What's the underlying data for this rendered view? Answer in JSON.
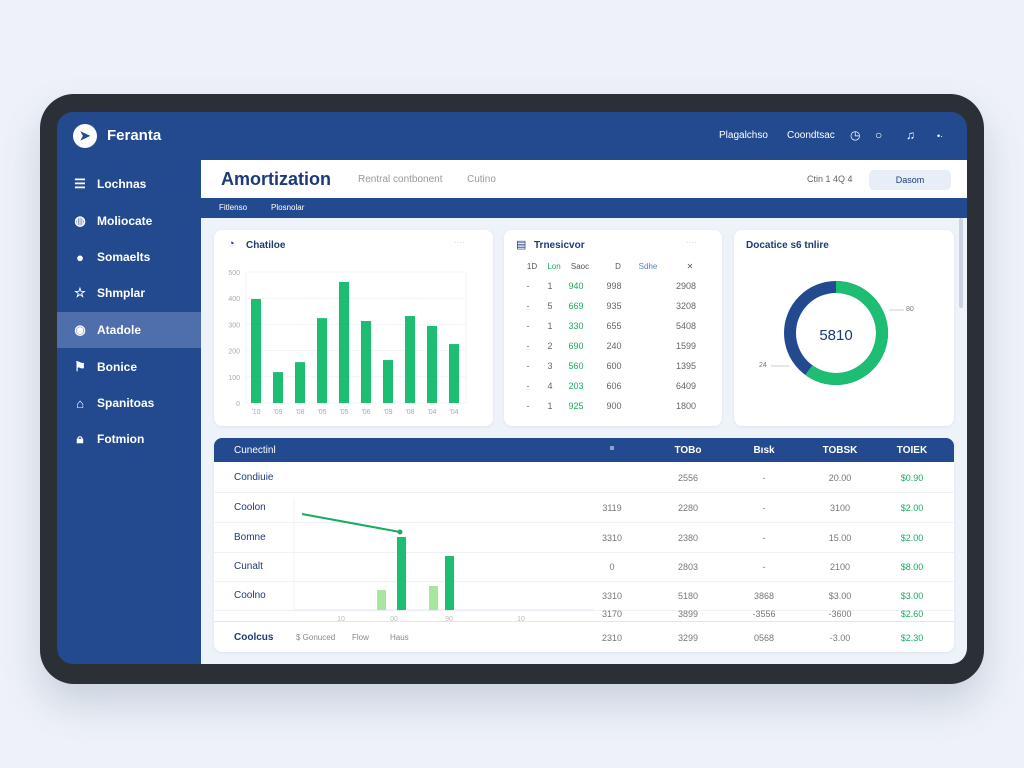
{
  "app": {
    "name": "Feranta"
  },
  "topbar": {
    "links": [
      "Plagalchso",
      "Coondtsac"
    ],
    "icons": [
      "clock-icon",
      "circle-icon",
      "bell-icon",
      "more-icon"
    ]
  },
  "sidebar": {
    "items": [
      {
        "label": "Lochnas",
        "icon": "list-icon"
      },
      {
        "label": "Moliocate",
        "icon": "globe-icon"
      },
      {
        "label": "Somaelts",
        "icon": "chat-icon"
      },
      {
        "label": "Shmplar",
        "icon": "star-icon"
      },
      {
        "label": "Atadole",
        "icon": "record-icon",
        "active": true
      },
      {
        "label": "Bonice",
        "icon": "flag-icon"
      },
      {
        "label": "Spanitoas",
        "icon": "bookmark-icon"
      },
      {
        "label": "Fotmion",
        "icon": "lock-icon"
      }
    ]
  },
  "header": {
    "title": "Amortization",
    "tabs": [
      "Rentral contbonent",
      "Cutino"
    ],
    "meta": "Ctin 1 4Q 4",
    "button": "Dasom",
    "subtabs": [
      "Fitlenso",
      "Plosnolar"
    ]
  },
  "chart_card": {
    "title": "Chatiloe",
    "menu": "····"
  },
  "chart_data": {
    "type": "bar",
    "categories": [
      "'10",
      "'09",
      "'08",
      "'05",
      "'05",
      "'06",
      "'09",
      "'08",
      "'04",
      "'04"
    ],
    "values": [
      397,
      118,
      156,
      324,
      462,
      313,
      164,
      332,
      294,
      225
    ],
    "yticks": [
      "0",
      "100",
      "200",
      "300",
      "400",
      "500"
    ],
    "ylim": [
      0,
      500
    ],
    "color": "#1dbd72",
    "grid": true
  },
  "table_card": {
    "title": "Trnesicvor",
    "menu": "····",
    "headers": [
      "1D",
      "Lon",
      "Saoc",
      "D",
      "Sdhe",
      "✕"
    ],
    "rows": [
      [
        "-",
        "1",
        "940",
        "998",
        "",
        "2908"
      ],
      [
        "-",
        "5",
        "669",
        "935",
        "",
        "3208"
      ],
      [
        "-",
        "1",
        "330",
        "655",
        "",
        "5408"
      ],
      [
        "-",
        "2",
        "690",
        "240",
        "",
        "1599"
      ],
      [
        "-",
        "3",
        "560",
        "600",
        "",
        "1395"
      ],
      [
        "-",
        "4",
        "203",
        "606",
        "",
        "6409"
      ],
      [
        "-",
        "1",
        "925",
        "900",
        "",
        "1800"
      ]
    ]
  },
  "donut": {
    "title": "Docatice s6 tnlire",
    "center": "5810",
    "label_right": "80",
    "label_left": "24",
    "fraction_green": 0.6,
    "colors": {
      "green": "#1dbd72",
      "blue": "#234a8f"
    }
  },
  "ledger": {
    "headers": [
      "Cunectinl",
      "ıı",
      "TOBo",
      "Bısk",
      "TOBSK",
      "TOIEK"
    ],
    "rows": [
      [
        "Condiuie",
        "",
        "2556",
        "-",
        "20.00",
        "$0.90"
      ],
      [
        "Coolon",
        "3119",
        "2280",
        "-",
        "3100",
        "$2.00"
      ],
      [
        "Bomne",
        "3310",
        "2380",
        "-",
        "15.00",
        "$2.00"
      ],
      [
        "Cunalt",
        "0",
        "2803",
        "-",
        "2100",
        "$8.00"
      ],
      [
        "Coolno",
        "3310",
        "5180",
        "3868",
        "$3.00",
        "$3.00"
      ],
      [
        "",
        "3170",
        "3899",
        "-3556",
        "-3600",
        "$2.60"
      ]
    ],
    "footer": {
      "label": "Coolcus",
      "links": [
        "$ Gonuced",
        "Flow",
        "Haus"
      ],
      "values": [
        "2310",
        "3299",
        "0568",
        "-3.00",
        "$2.30"
      ]
    },
    "mini_axis": [
      "10",
      "00",
      "90",
      "10"
    ]
  }
}
